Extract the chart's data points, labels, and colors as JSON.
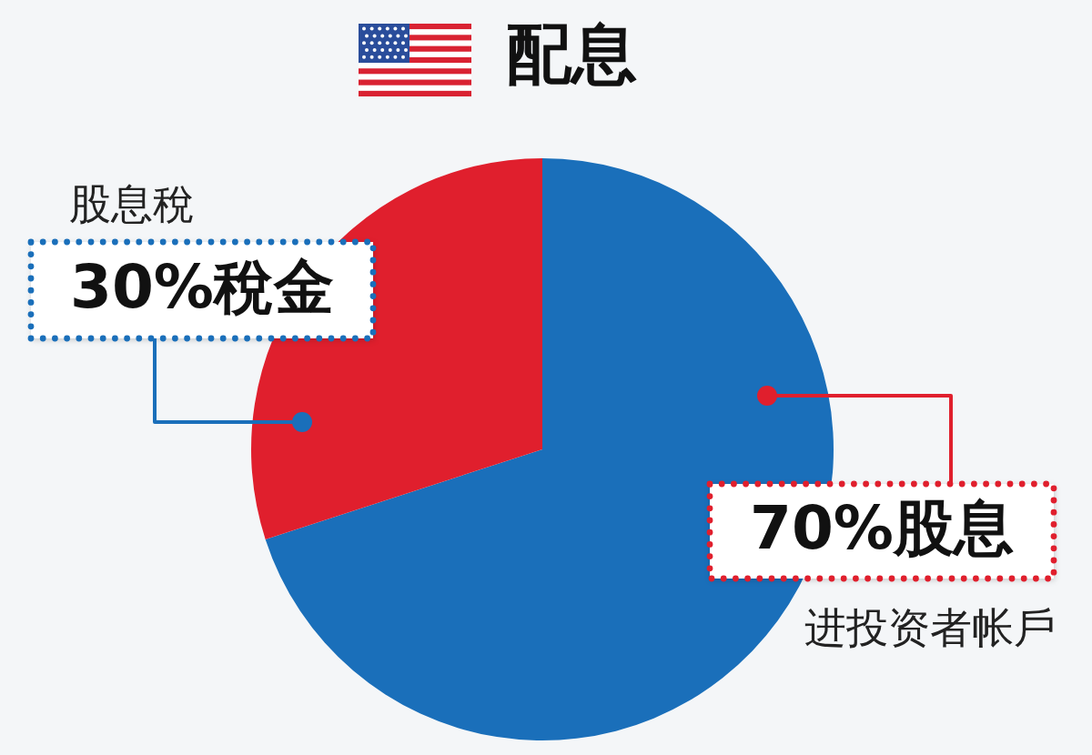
{
  "chart_data": {
    "type": "pie",
    "title": "配息",
    "categories": [
      "进投资者帐戶",
      "股息稅"
    ],
    "values": [
      70,
      30
    ],
    "colors": [
      "#1a6fba",
      "#e01f2d"
    ],
    "value_labels": [
      "70%股息",
      "30%稅金"
    ]
  }
}
